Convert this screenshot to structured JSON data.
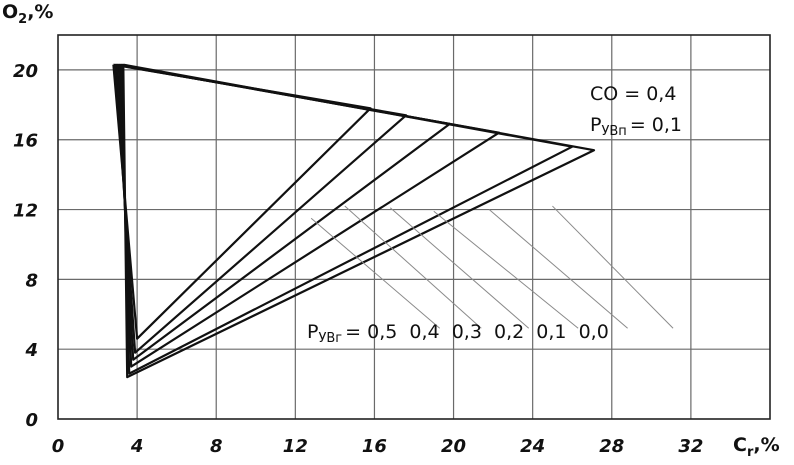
{
  "chart_data": {
    "type": "line",
    "xlabel": "C",
    "xlabel_sub": "r",
    "xlabel_unit": ",%",
    "ylabel": "O",
    "ylabel_sub": "2",
    "ylabel_unit": ",%",
    "xlim": [
      0,
      36
    ],
    "ylim": [
      0,
      22
    ],
    "x_ticks": [
      0,
      4,
      8,
      12,
      16,
      20,
      24,
      28,
      32
    ],
    "x_tick_labels": [
      "0",
      "4",
      "8",
      "12",
      "16",
      "20",
      "24",
      "28",
      "32"
    ],
    "y_ticks": [
      0,
      4,
      8,
      12,
      16,
      20
    ],
    "y_tick_labels": [
      "0",
      "4",
      "8",
      "12",
      "16",
      "20"
    ],
    "grid": true,
    "annotations": {
      "co_label": "CO",
      "co_value": "= 0,4",
      "pyvn_label": "P",
      "pyvn_sub": "УВп",
      "pyvn_value": "= 0,1",
      "pyvr_label": "P",
      "pyvr_sub": "УВг",
      "pyvr_values": "= 0,5  0,4  0,3  0,2  0,1  0,0"
    },
    "series": [
      {
        "label": "0,5",
        "points": [
          [
            2.8,
            20.3
          ],
          [
            4.0,
            4.6
          ],
          [
            15.8,
            17.8
          ],
          [
            2.8,
            20.3
          ]
        ]
      },
      {
        "label": "0,4",
        "points": [
          [
            2.9,
            20.3
          ],
          [
            3.9,
            3.8
          ],
          [
            17.6,
            17.4
          ],
          [
            2.9,
            20.3
          ]
        ]
      },
      {
        "label": "0,3",
        "points": [
          [
            3.0,
            20.3
          ],
          [
            3.8,
            3.4
          ],
          [
            19.8,
            16.9
          ],
          [
            3.0,
            20.3
          ]
        ]
      },
      {
        "label": "0,2",
        "points": [
          [
            3.1,
            20.3
          ],
          [
            3.7,
            3.0
          ],
          [
            22.3,
            16.4
          ],
          [
            3.1,
            20.3
          ]
        ]
      },
      {
        "label": "0,1",
        "points": [
          [
            3.2,
            20.3
          ],
          [
            3.6,
            2.6
          ],
          [
            26.0,
            15.6
          ],
          [
            3.2,
            20.3
          ]
        ]
      },
      {
        "label": "0,0",
        "points": [
          [
            3.3,
            20.3
          ],
          [
            3.5,
            2.4
          ],
          [
            27.1,
            15.4
          ],
          [
            3.3,
            20.3
          ]
        ]
      }
    ],
    "leaders": [
      {
        "label": "0,5",
        "from": [
          12.8,
          11.5
        ],
        "to": [
          19.3,
          5.2
        ]
      },
      {
        "label": "0,4",
        "from": [
          14.5,
          12.2
        ],
        "to": [
          21.4,
          5.2
        ]
      },
      {
        "label": "0,3",
        "from": [
          16.8,
          12.1
        ],
        "to": [
          23.8,
          5.2
        ]
      },
      {
        "label": "0,2",
        "from": [
          19.0,
          11.9
        ],
        "to": [
          26.3,
          5.2
        ]
      },
      {
        "label": "0,1",
        "from": [
          21.8,
          12.0
        ],
        "to": [
          28.8,
          5.2
        ]
      },
      {
        "label": "0,0",
        "from": [
          25.0,
          12.2
        ],
        "to": [
          31.1,
          5.2
        ]
      }
    ]
  }
}
